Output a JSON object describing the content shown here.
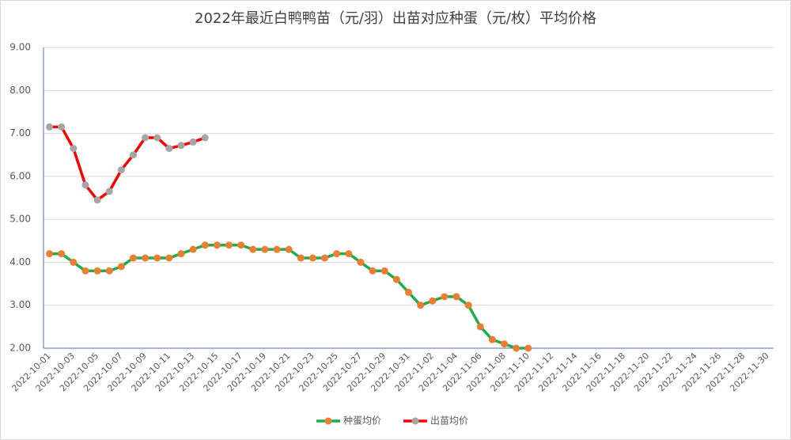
{
  "chart_data": {
    "type": "line",
    "title": "2022年最近白鸭鸭苗（元/羽）出苗对应种蛋（元/枚）平均价格",
    "categories": [
      "2022-10-01",
      null,
      "2022-10-03",
      null,
      "2022-10-05",
      null,
      "2022-10-07",
      null,
      "2022-10-09",
      null,
      "2022-10-11",
      null,
      "2022-10-13",
      null,
      "2022-10-15",
      null,
      "2022-10-17",
      null,
      "2022-10-19",
      null,
      "2022-10-21",
      null,
      "2022-10-23",
      null,
      "2022-10-25",
      null,
      "2022-10-27",
      null,
      "2022-10-29",
      null,
      "2022-10-31",
      null,
      "2022-11-02",
      null,
      "2022-11-04",
      null,
      "2022-11-06",
      null,
      "2022-11-08",
      null,
      "2022-11-10",
      null,
      "2022-11-12",
      null,
      "2022-11-14",
      null,
      "2022-11-16",
      null,
      "2022-11-18",
      null,
      "2022-11-20",
      null,
      "2022-11-22",
      null,
      "2022-11-24",
      null,
      "2022-11-26",
      null,
      "2022-11-28",
      null,
      "2022-11-30"
    ],
    "series": [
      {
        "name": "种蛋均价",
        "color": "#1fae4b",
        "marker_color": "#ed7d31",
        "values": [
          4.2,
          4.2,
          4.0,
          3.8,
          3.8,
          3.8,
          3.9,
          4.1,
          4.1,
          4.1,
          4.1,
          4.2,
          4.3,
          4.4,
          4.4,
          4.4,
          4.4,
          4.3,
          4.3,
          4.3,
          4.3,
          4.1,
          4.1,
          4.1,
          4.2,
          4.2,
          4.0,
          3.8,
          3.8,
          3.6,
          3.3,
          3.0,
          3.1,
          3.2,
          3.2,
          3.0,
          2.5,
          2.2,
          2.1,
          2.0,
          2.0,
          null,
          null,
          null,
          null,
          null,
          null,
          null,
          null,
          null,
          null,
          null,
          null,
          null,
          null,
          null,
          null,
          null,
          null,
          null,
          null
        ]
      },
      {
        "name": "出苗均价",
        "color": "#ff0000",
        "marker_color": "#a5a5a5",
        "values": [
          7.15,
          7.15,
          6.65,
          5.8,
          5.45,
          5.65,
          6.15,
          6.5,
          6.9,
          6.9,
          6.65,
          6.72,
          6.8,
          6.9,
          null,
          null,
          null,
          null,
          null,
          null,
          null,
          null,
          null,
          null,
          null,
          null,
          null,
          null,
          null,
          null,
          null,
          null,
          null,
          null,
          null,
          null,
          null,
          null,
          null,
          null,
          null,
          null,
          null,
          null,
          null,
          null,
          null,
          null,
          null,
          null,
          null,
          null,
          null,
          null,
          null,
          null,
          null,
          null,
          null,
          null,
          null
        ]
      }
    ],
    "ylim": [
      2,
      9
    ],
    "yticks": [
      {
        "value": 2,
        "label": "2.00"
      },
      {
        "value": 3,
        "label": "3.00"
      },
      {
        "value": 4,
        "label": "4.00"
      },
      {
        "value": 5,
        "label": "5.00"
      },
      {
        "value": 6,
        "label": "6.00"
      },
      {
        "value": 7,
        "label": "7.00"
      },
      {
        "value": 8,
        "label": "8.00"
      },
      {
        "value": 9,
        "label": "9.00"
      }
    ],
    "grid": true,
    "legend": "bottom"
  }
}
